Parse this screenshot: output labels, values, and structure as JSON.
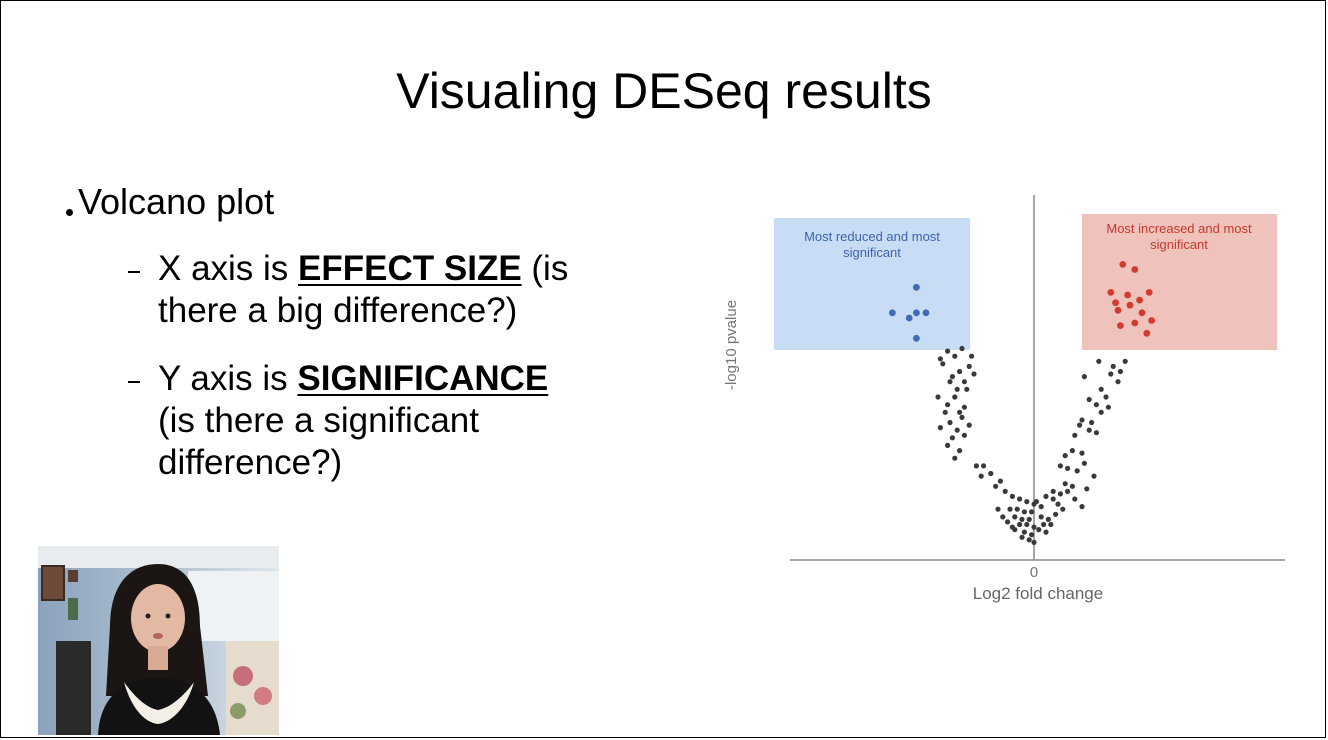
{
  "slide": {
    "title": "Visualing DESeq results"
  },
  "bullets": {
    "main": "Volcano plot",
    "x_axis": {
      "prefix": "X axis is",
      "term": "EFFECT SIZE",
      "line1_rest": "(is",
      "line2": "there a big difference?)"
    },
    "y_axis": {
      "prefix": "Y axis is",
      "term": "SIGNIFICANCE",
      "line2": "(is there a significant",
      "line3": "difference?)"
    }
  },
  "chart_data": {
    "type": "scatter",
    "title": "",
    "xlabel": "Log2 fold change",
    "ylabel": "-log10 pvalue",
    "xticks": [
      "0"
    ],
    "xlim": [
      -10,
      10
    ],
    "ylim": [
      0,
      13
    ],
    "annotations": [
      {
        "text_line1": "Most reduced and most",
        "text_line2": "significant",
        "color": "#3d64a8",
        "fill": "#c9dcf6"
      },
      {
        "text_line1": "Most increased and most",
        "text_line2": "significant",
        "color": "#c33a2e",
        "fill": "#f0c2bc"
      }
    ],
    "series": [
      {
        "color": "#3e6db5",
        "x": [
          -4.9,
          -5.9,
          -5.2,
          -4.9,
          -4.5,
          -4.9
        ],
        "y": [
          10.3,
          9.3,
          9.1,
          9.3,
          9.3,
          8.3
        ]
      },
      {
        "color": "#d33b30",
        "x": [
          3.7,
          4.2,
          3.2,
          3.9,
          4.8,
          3.4,
          4.4,
          4.0,
          3.5,
          4.5,
          4.9,
          4.2,
          3.6,
          4.7
        ],
        "y": [
          11.2,
          11.0,
          10.1,
          10.0,
          10.1,
          9.7,
          9.8,
          9.6,
          9.4,
          9.3,
          9.0,
          8.9,
          8.8,
          8.5
        ],
        "name": ""
      },
      {
        "color": "#3a3a3a",
        "x": [
          -3.0,
          -3.6,
          -3.3,
          -2.6,
          -3.9,
          -2.7,
          -3.1,
          -3.8,
          -2.5,
          -3.4,
          -2.9,
          -3.5,
          -3.2,
          -2.8,
          -4.0,
          -3.3,
          -3.6,
          -2.9,
          -3.1,
          -3.7,
          -3.0,
          -3.5,
          -2.7,
          -3.2,
          -3.9,
          -2.9,
          -3.4,
          -3.6,
          -3.1,
          -3.3,
          -2.4,
          -2.1,
          -1.8,
          -1.4,
          -2.2,
          -1.6,
          -1.2,
          -0.9,
          -0.6,
          -0.3,
          0.0,
          -1.0,
          -0.7,
          -0.4,
          -0.1,
          -1.3,
          -0.8,
          -0.5,
          -0.2,
          -0.6,
          -0.3,
          0.0,
          -0.9,
          -0.4,
          -0.1,
          -0.2,
          0.0,
          -0.5,
          -0.8,
          -1.1,
          -1.5,
          0.3,
          0.6,
          0.9,
          1.2,
          0.4,
          0.7,
          1.0,
          0.2,
          0.5,
          0.8,
          1.1,
          1.4,
          1.7,
          2.0,
          1.3,
          1.6,
          0.3,
          0.1,
          0.5,
          1.1,
          1.3,
          1.8,
          2.1,
          1.6,
          2.5,
          2.2,
          1.4,
          2.0,
          1.7,
          2.3,
          2.6,
          1.9,
          2.4,
          2.8,
          3.1,
          2.6,
          3.0,
          2.3,
          2.8,
          3.5,
          3.8,
          3.2,
          3.6,
          2.1,
          2.7,
          3.3,
          2.0,
          0.8
        ],
        "y": [
          7.9,
          7.8,
          7.6,
          7.6,
          7.5,
          7.2,
          7.0,
          7.3,
          6.9,
          6.8,
          6.6,
          6.6,
          6.3,
          6.3,
          6.0,
          6.0,
          5.7,
          5.6,
          5.4,
          5.4,
          5.2,
          5.0,
          4.9,
          4.7,
          4.8,
          4.5,
          4.4,
          4.1,
          3.9,
          3.6,
          3.3,
          3.3,
          3.0,
          2.7,
          2.9,
          2.5,
          2.3,
          2.1,
          2.0,
          1.9,
          1.8,
          1.6,
          1.6,
          1.5,
          1.5,
          1.3,
          1.3,
          1.2,
          1.2,
          1.0,
          1.0,
          0.9,
          0.9,
          0.7,
          0.6,
          0.4,
          0.3,
          0.5,
          0.8,
          1.1,
          1.6,
          1.3,
          1.2,
          1.4,
          1.6,
          1.0,
          1.0,
          1.8,
          0.8,
          0.7,
          2.0,
          2.2,
          2.3,
          2.0,
          1.7,
          2.6,
          2.5,
          1.7,
          1.9,
          2.1,
          3.3,
          3.7,
          3.1,
          3.4,
          3.9,
          2.9,
          2.4,
          3.2,
          3.8,
          4.5,
          4.7,
          4.6,
          4.9,
          5.0,
          5.4,
          5.6,
          5.7,
          6.0,
          5.9,
          6.3,
          6.6,
          7.4,
          6.9,
          7.0,
          6.8,
          7.4,
          7.2,
          5.1,
          2.3
        ]
      }
    ]
  }
}
